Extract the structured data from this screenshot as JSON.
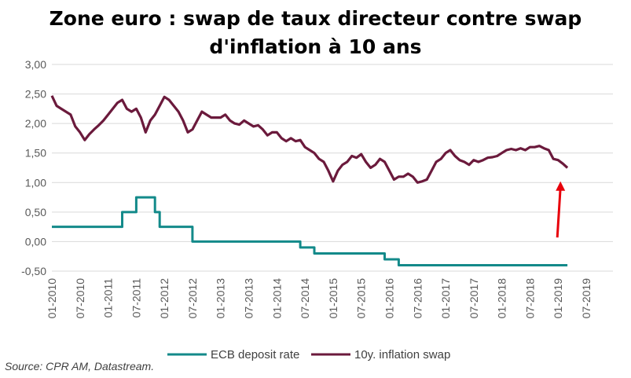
{
  "chart_data": {
    "type": "line",
    "title_line1": "Zone euro : swap de taux directeur contre swap",
    "title_line2": "d'inflation à 10 ans",
    "source": "Source: CPR AM, Datastream.",
    "xlim": [
      "2010-01",
      "2019-07"
    ],
    "ylim": [
      -0.5,
      3.0
    ],
    "grid": true,
    "legend_position": "bottom",
    "y_ticks": [
      "3,00",
      "2,50",
      "2,00",
      "1,50",
      "1,00",
      "0,50",
      "0,00",
      "-0,50"
    ],
    "y_tick_values": [
      3.0,
      2.5,
      2.0,
      1.5,
      1.0,
      0.5,
      0.0,
      -0.5
    ],
    "x_ticks": [
      "01-2010",
      "07-2010",
      "01-2011",
      "07-2011",
      "01-2012",
      "07-2012",
      "01-2013",
      "07-2013",
      "01-2014",
      "07-2014",
      "01-2015",
      "07-2015",
      "01-2016",
      "07-2016",
      "01-2017",
      "07-2017",
      "01-2018",
      "07-2018",
      "01-2019",
      "07-2019"
    ],
    "x_tick_dates": [
      "2010-01",
      "2010-07",
      "2011-01",
      "2011-07",
      "2012-01",
      "2012-07",
      "2013-01",
      "2013-07",
      "2014-01",
      "2014-07",
      "2015-01",
      "2015-07",
      "2016-01",
      "2016-07",
      "2017-01",
      "2017-07",
      "2018-01",
      "2018-07",
      "2019-01",
      "2019-07"
    ],
    "series": [
      {
        "name": "ECB deposit rate",
        "color": "#138a8a",
        "step": true,
        "points": [
          [
            "2010-01",
            0.25
          ],
          [
            "2011-04",
            0.25
          ],
          [
            "2011-04",
            0.5
          ],
          [
            "2011-07",
            0.5
          ],
          [
            "2011-07",
            0.75
          ],
          [
            "2011-11",
            0.75
          ],
          [
            "2011-11",
            0.5
          ],
          [
            "2011-12",
            0.5
          ],
          [
            "2011-12",
            0.25
          ],
          [
            "2012-07",
            0.25
          ],
          [
            "2012-07",
            0.0
          ],
          [
            "2014-06",
            0.0
          ],
          [
            "2014-06",
            -0.1
          ],
          [
            "2014-09",
            -0.1
          ],
          [
            "2014-09",
            -0.2
          ],
          [
            "2015-12",
            -0.2
          ],
          [
            "2015-12",
            -0.3
          ],
          [
            "2016-03",
            -0.3
          ],
          [
            "2016-03",
            -0.4
          ],
          [
            "2019-03",
            -0.4
          ]
        ]
      },
      {
        "name": "10y. inflation swap",
        "color": "#6b1a3c",
        "step": false,
        "points": [
          [
            "2010-01",
            2.47
          ],
          [
            "2010-02",
            2.3
          ],
          [
            "2010-03",
            2.25
          ],
          [
            "2010-04",
            2.2
          ],
          [
            "2010-05",
            2.15
          ],
          [
            "2010-06",
            1.95
          ],
          [
            "2010-07",
            1.85
          ],
          [
            "2010-08",
            1.72
          ],
          [
            "2010-09",
            1.82
          ],
          [
            "2010-10",
            1.9
          ],
          [
            "2010-11",
            1.97
          ],
          [
            "2010-12",
            2.05
          ],
          [
            "2011-01",
            2.15
          ],
          [
            "2011-02",
            2.25
          ],
          [
            "2011-03",
            2.35
          ],
          [
            "2011-04",
            2.4
          ],
          [
            "2011-05",
            2.25
          ],
          [
            "2011-06",
            2.2
          ],
          [
            "2011-07",
            2.25
          ],
          [
            "2011-08",
            2.1
          ],
          [
            "2011-09",
            1.85
          ],
          [
            "2011-10",
            2.05
          ],
          [
            "2011-11",
            2.15
          ],
          [
            "2011-12",
            2.3
          ],
          [
            "2012-01",
            2.45
          ],
          [
            "2012-02",
            2.4
          ],
          [
            "2012-03",
            2.3
          ],
          [
            "2012-04",
            2.2
          ],
          [
            "2012-05",
            2.05
          ],
          [
            "2012-06",
            1.85
          ],
          [
            "2012-07",
            1.9
          ],
          [
            "2012-08",
            2.05
          ],
          [
            "2012-09",
            2.2
          ],
          [
            "2012-10",
            2.15
          ],
          [
            "2012-11",
            2.1
          ],
          [
            "2012-12",
            2.1
          ],
          [
            "2013-01",
            2.1
          ],
          [
            "2013-02",
            2.15
          ],
          [
            "2013-03",
            2.05
          ],
          [
            "2013-04",
            2.0
          ],
          [
            "2013-05",
            1.98
          ],
          [
            "2013-06",
            2.05
          ],
          [
            "2013-07",
            2.0
          ],
          [
            "2013-08",
            1.95
          ],
          [
            "2013-09",
            1.97
          ],
          [
            "2013-10",
            1.9
          ],
          [
            "2013-11",
            1.8
          ],
          [
            "2013-12",
            1.85
          ],
          [
            "2014-01",
            1.85
          ],
          [
            "2014-02",
            1.75
          ],
          [
            "2014-03",
            1.7
          ],
          [
            "2014-04",
            1.75
          ],
          [
            "2014-05",
            1.7
          ],
          [
            "2014-06",
            1.72
          ],
          [
            "2014-07",
            1.6
          ],
          [
            "2014-08",
            1.55
          ],
          [
            "2014-09",
            1.5
          ],
          [
            "2014-10",
            1.4
          ],
          [
            "2014-11",
            1.35
          ],
          [
            "2014-12",
            1.2
          ],
          [
            "2015-01",
            1.02
          ],
          [
            "2015-02",
            1.2
          ],
          [
            "2015-03",
            1.3
          ],
          [
            "2015-04",
            1.35
          ],
          [
            "2015-05",
            1.45
          ],
          [
            "2015-06",
            1.42
          ],
          [
            "2015-07",
            1.48
          ],
          [
            "2015-08",
            1.35
          ],
          [
            "2015-09",
            1.25
          ],
          [
            "2015-10",
            1.3
          ],
          [
            "2015-11",
            1.4
          ],
          [
            "2015-12",
            1.35
          ],
          [
            "2016-01",
            1.2
          ],
          [
            "2016-02",
            1.05
          ],
          [
            "2016-03",
            1.1
          ],
          [
            "2016-04",
            1.1
          ],
          [
            "2016-05",
            1.15
          ],
          [
            "2016-06",
            1.1
          ],
          [
            "2016-07",
            1.0
          ],
          [
            "2016-08",
            1.02
          ],
          [
            "2016-09",
            1.05
          ],
          [
            "2016-10",
            1.2
          ],
          [
            "2016-11",
            1.35
          ],
          [
            "2016-12",
            1.4
          ],
          [
            "2017-01",
            1.5
          ],
          [
            "2017-02",
            1.55
          ],
          [
            "2017-03",
            1.45
          ],
          [
            "2017-04",
            1.38
          ],
          [
            "2017-05",
            1.35
          ],
          [
            "2017-06",
            1.3
          ],
          [
            "2017-07",
            1.38
          ],
          [
            "2017-08",
            1.35
          ],
          [
            "2017-09",
            1.38
          ],
          [
            "2017-10",
            1.42
          ],
          [
            "2017-11",
            1.43
          ],
          [
            "2017-12",
            1.45
          ],
          [
            "2018-01",
            1.5
          ],
          [
            "2018-02",
            1.55
          ],
          [
            "2018-03",
            1.57
          ],
          [
            "2018-04",
            1.55
          ],
          [
            "2018-05",
            1.58
          ],
          [
            "2018-06",
            1.55
          ],
          [
            "2018-07",
            1.6
          ],
          [
            "2018-08",
            1.6
          ],
          [
            "2018-09",
            1.62
          ],
          [
            "2018-10",
            1.58
          ],
          [
            "2018-11",
            1.55
          ],
          [
            "2018-12",
            1.4
          ],
          [
            "2019-01",
            1.38
          ],
          [
            "2019-02",
            1.32
          ],
          [
            "2019-03",
            1.25
          ]
        ]
      }
    ],
    "annotation": {
      "type": "arrow",
      "color": "#e8000b",
      "from": [
        "2019-01",
        0.07
      ],
      "to": [
        "2019-01",
        1.02
      ]
    }
  }
}
